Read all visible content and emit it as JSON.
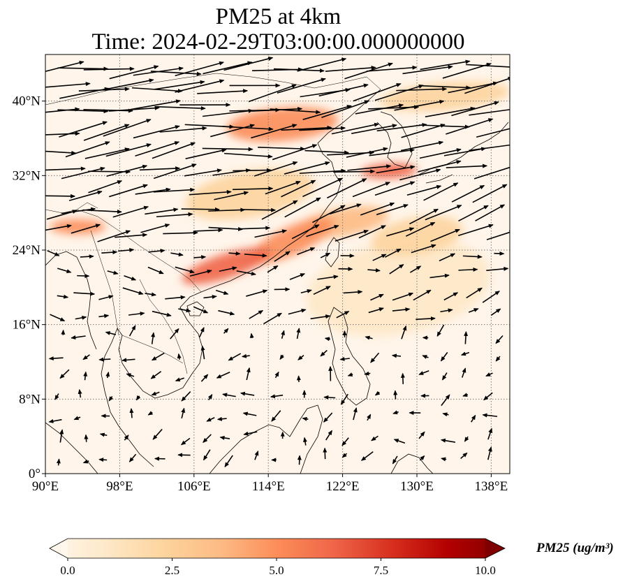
{
  "title": {
    "line1": "PM25 at 4km",
    "line2": "Time: 2024-02-29T03:00:00.000000000"
  },
  "map": {
    "projection": "PlateCarree",
    "lon_range": [
      90,
      140
    ],
    "lat_range": [
      0,
      45
    ],
    "x_ticks": [
      {
        "value": 90,
        "label": "90°E"
      },
      {
        "value": 98,
        "label": "98°E"
      },
      {
        "value": 106,
        "label": "106°E"
      },
      {
        "value": 114,
        "label": "114°E"
      },
      {
        "value": 122,
        "label": "122°E"
      },
      {
        "value": 130,
        "label": "130°E"
      },
      {
        "value": 138,
        "label": "138°E"
      }
    ],
    "y_ticks": [
      {
        "value": 0,
        "label": "0°"
      },
      {
        "value": 8,
        "label": "8°N"
      },
      {
        "value": 16,
        "label": "16°N"
      },
      {
        "value": 24,
        "label": "24°N"
      },
      {
        "value": 32,
        "label": "32°N"
      },
      {
        "value": 40,
        "label": "40°N"
      }
    ],
    "gridlines": true,
    "features": [
      "coastlines",
      "country borders",
      "wind vectors"
    ]
  },
  "chart_data": {
    "type": "heatmap",
    "variable": "PM25",
    "overlay": "wind vectors",
    "colormap": "OrRd",
    "vmin": 0.0,
    "vmax": 10.0,
    "extend": "both",
    "hotspots": [
      {
        "lon": 115.5,
        "lat": 37.5,
        "rx": 6,
        "ry": 1.8,
        "value": 4.5,
        "rot": -5
      },
      {
        "lon": 127.0,
        "lat": 32.5,
        "rx": 3,
        "ry": 0.8,
        "value": 6.5,
        "rot": -3
      },
      {
        "lon": 93.5,
        "lat": 26.5,
        "rx": 3,
        "ry": 0.8,
        "value": 5.5,
        "rot": 0
      },
      {
        "lon": 109.5,
        "lat": 22.3,
        "rx": 5,
        "ry": 1.3,
        "value": 6.0,
        "rot": -18
      },
      {
        "lon": 116.5,
        "lat": 25.0,
        "rx": 5,
        "ry": 1.5,
        "value": 5.0,
        "rot": -25
      },
      {
        "lon": 122.0,
        "lat": 27.0,
        "rx": 5,
        "ry": 1.5,
        "value": 3.5,
        "rot": -10
      },
      {
        "lon": 130.0,
        "lat": 25.5,
        "rx": 5,
        "ry": 2.0,
        "value": 3.0,
        "rot": -10
      },
      {
        "lon": 133.0,
        "lat": 40.5,
        "rx": 7,
        "ry": 1.5,
        "value": 3.0,
        "rot": -5
      },
      {
        "lon": 112.0,
        "lat": 30.0,
        "rx": 7,
        "ry": 2.5,
        "value": 2.0,
        "rot": -10
      },
      {
        "lon": 128.0,
        "lat": 20.0,
        "rx": 10,
        "ry": 5,
        "value": 1.0,
        "rot": -10
      }
    ],
    "colorbar": {
      "label": "PM25 (ug/m³)",
      "ticks": [
        {
          "value": 0.0,
          "label": "0.0"
        },
        {
          "value": 2.5,
          "label": "2.5"
        },
        {
          "value": 5.0,
          "label": "5.0"
        },
        {
          "value": 7.5,
          "label": "7.5"
        },
        {
          "value": 10.0,
          "label": "10.0"
        }
      ]
    }
  }
}
